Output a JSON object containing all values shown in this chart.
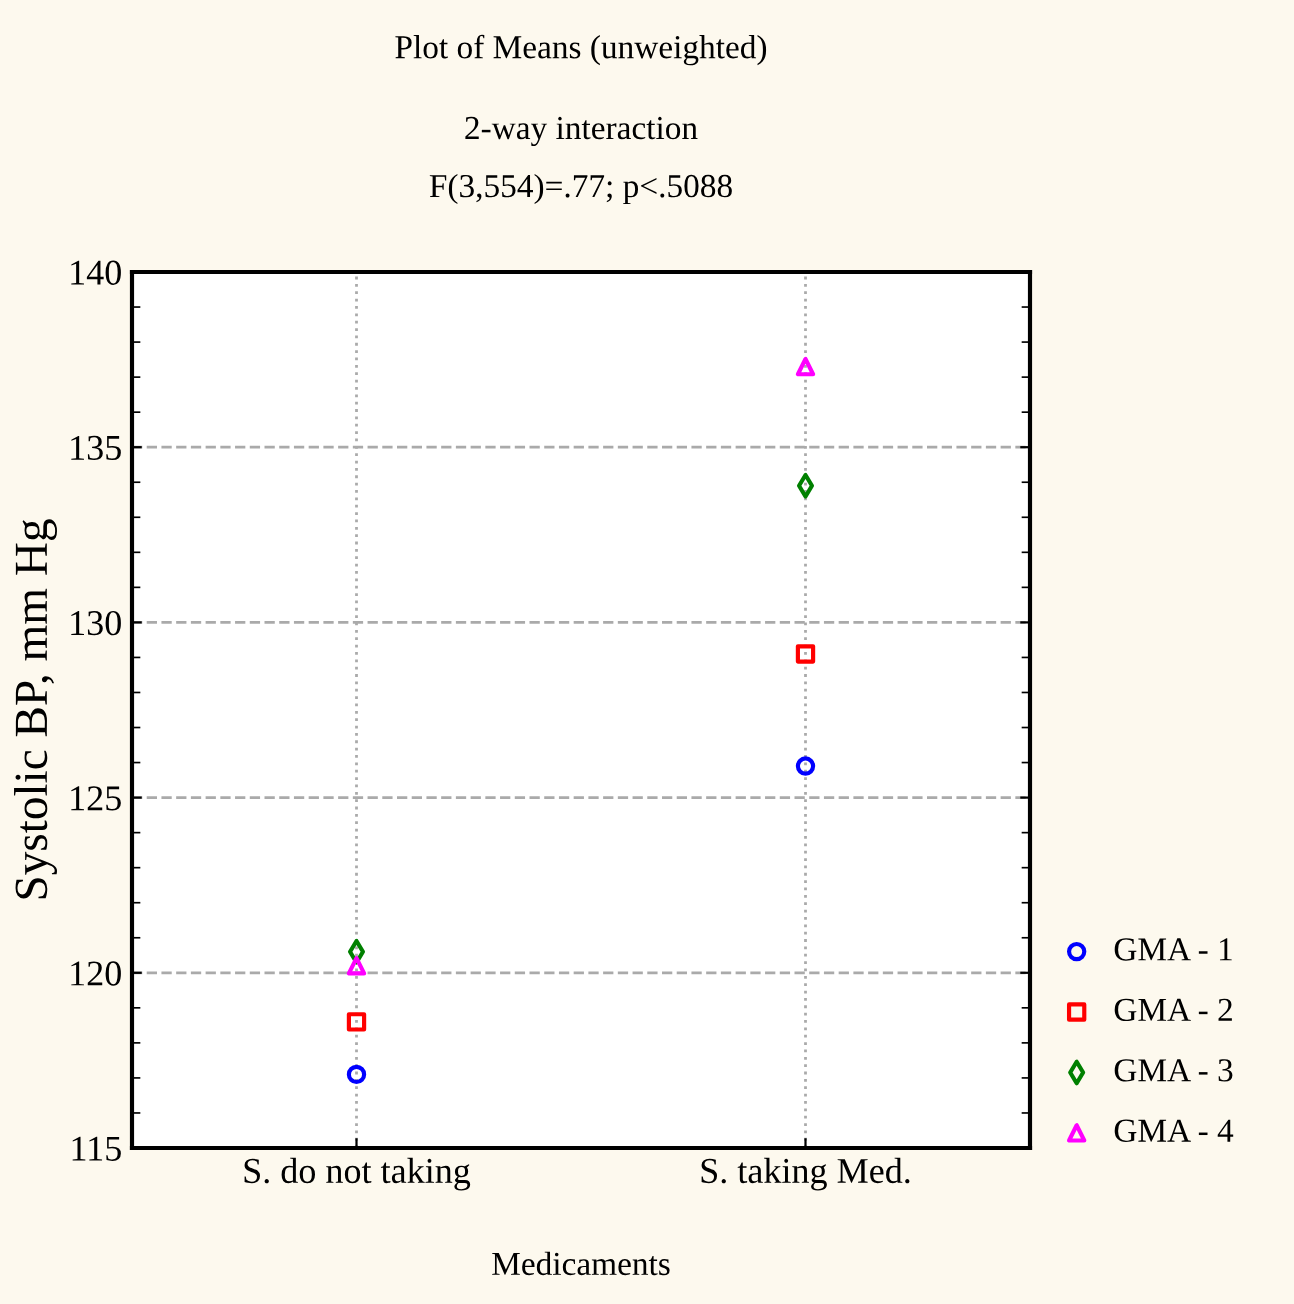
{
  "chart_data": {
    "type": "scatter",
    "title": "Plot of Means (unweighted)",
    "subtitle": "2-way interaction\nF(3,554)=.77; p<.5088",
    "xlabel": "Medicaments",
    "ylabel": "Systolic BP, mm Hg",
    "categories": [
      "S. do not taking",
      "S. taking Med."
    ],
    "series": [
      {
        "name": "GMA - 1",
        "color": "#0000ff",
        "marker": "circle",
        "values": [
          117.1,
          125.9
        ]
      },
      {
        "name": "GMA - 2",
        "color": "#ff0000",
        "marker": "square",
        "values": [
          118.6,
          129.1
        ]
      },
      {
        "name": "GMA - 3",
        "color": "#008000",
        "marker": "diamond",
        "values": [
          120.6,
          133.9
        ]
      },
      {
        "name": "GMA - 4",
        "color": "#ff00ff",
        "marker": "triangle",
        "values": [
          120.2,
          137.3
        ]
      }
    ],
    "ylim": [
      115,
      140
    ],
    "yticks": [
      115,
      120,
      125,
      130,
      135,
      140
    ],
    "grid": true,
    "legend": "right"
  }
}
